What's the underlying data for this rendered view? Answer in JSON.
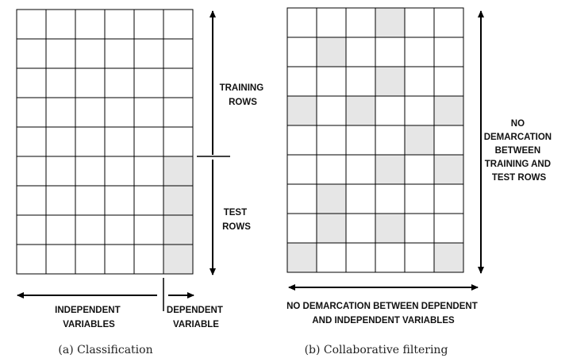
{
  "panel_a": {
    "rows": 9,
    "cols": 6,
    "shaded_cells": [
      [
        5,
        5
      ],
      [
        6,
        5
      ],
      [
        7,
        5
      ],
      [
        8,
        5
      ]
    ],
    "labels": {
      "training_rows": [
        "TRAINING",
        "ROWS"
      ],
      "test_rows": [
        "TEST",
        "ROWS"
      ],
      "independent_variables": [
        "INDEPENDENT",
        "VARIABLES"
      ],
      "dependent_variable": [
        "DEPENDENT",
        "VARIABLE"
      ]
    },
    "caption": "(a) Classification"
  },
  "panel_b": {
    "rows": 9,
    "cols": 6,
    "shaded_cells": [
      [
        0,
        3
      ],
      [
        1,
        1
      ],
      [
        2,
        3
      ],
      [
        3,
        0
      ],
      [
        3,
        2
      ],
      [
        3,
        5
      ],
      [
        4,
        4
      ],
      [
        5,
        3
      ],
      [
        5,
        5
      ],
      [
        6,
        1
      ],
      [
        7,
        1
      ],
      [
        7,
        3
      ],
      [
        8,
        0
      ],
      [
        8,
        5
      ]
    ],
    "labels": {
      "no_demarcation_rows": [
        "NO",
        "DEMARCATION",
        "BETWEEN",
        "TRAINING AND",
        "TEST ROWS"
      ],
      "no_demarcation_variables": [
        "NO DEMARCATION BETWEEN DEPENDENT",
        "AND INDEPENDENT VARIABLES"
      ]
    },
    "caption": "(b) Collaborative filtering"
  },
  "colors": {
    "grid_line": "#000000",
    "shaded_cell": "#e6e6e6",
    "cell": "#ffffff"
  }
}
